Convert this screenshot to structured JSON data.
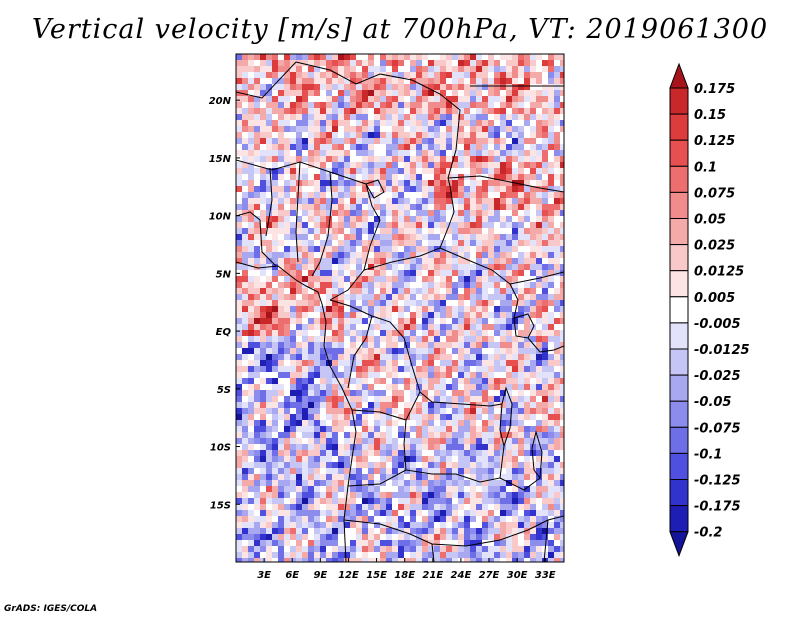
{
  "title": "Vertical velocity [m/s] at 700hPa, VT: 2019061300",
  "credit": "GrADS: IGES/COLA",
  "map": {
    "lon_range": [
      0,
      35
    ],
    "lat_range": [
      -20,
      24
    ],
    "lat_ticks": [
      {
        "value": 20,
        "label": "20N"
      },
      {
        "value": 15,
        "label": "15N"
      },
      {
        "value": 10,
        "label": "10N"
      },
      {
        "value": 5,
        "label": "5N"
      },
      {
        "value": 0,
        "label": "EQ"
      },
      {
        "value": -5,
        "label": "5S"
      },
      {
        "value": -10,
        "label": "10S"
      },
      {
        "value": -15,
        "label": "15S"
      }
    ],
    "lon_ticks": [
      {
        "value": 3,
        "label": "3E"
      },
      {
        "value": 6,
        "label": "6E"
      },
      {
        "value": 9,
        "label": "9E"
      },
      {
        "value": 12,
        "label": "12E"
      },
      {
        "value": 15,
        "label": "15E"
      },
      {
        "value": 18,
        "label": "18E"
      },
      {
        "value": 21,
        "label": "21E"
      },
      {
        "value": 24,
        "label": "24E"
      },
      {
        "value": 27,
        "label": "27E"
      },
      {
        "value": 30,
        "label": "30E"
      },
      {
        "value": 33,
        "label": "33E"
      }
    ]
  },
  "colorbar": {
    "levels": [
      "0.175",
      "0.15",
      "0.125",
      "0.1",
      "0.075",
      "0.05",
      "0.025",
      "0.0125",
      "0.005",
      "-0.005",
      "-0.0125",
      "-0.025",
      "-0.05",
      "-0.075",
      "-0.1",
      "-0.125",
      "-0.175",
      "-0.2"
    ],
    "colors": [
      "#a8141c",
      "#c8282a",
      "#dc3c3c",
      "#e65050",
      "#ec6e6e",
      "#f08c8c",
      "#f5aaaa",
      "#f9c8c8",
      "#fce4e4",
      "#ffffff",
      "#e2e2fb",
      "#c6c6f6",
      "#a8a8f0",
      "#8c8ced",
      "#6e6ee7",
      "#5050e0",
      "#3232cc",
      "#1e1eb4",
      "#14149a"
    ]
  }
}
